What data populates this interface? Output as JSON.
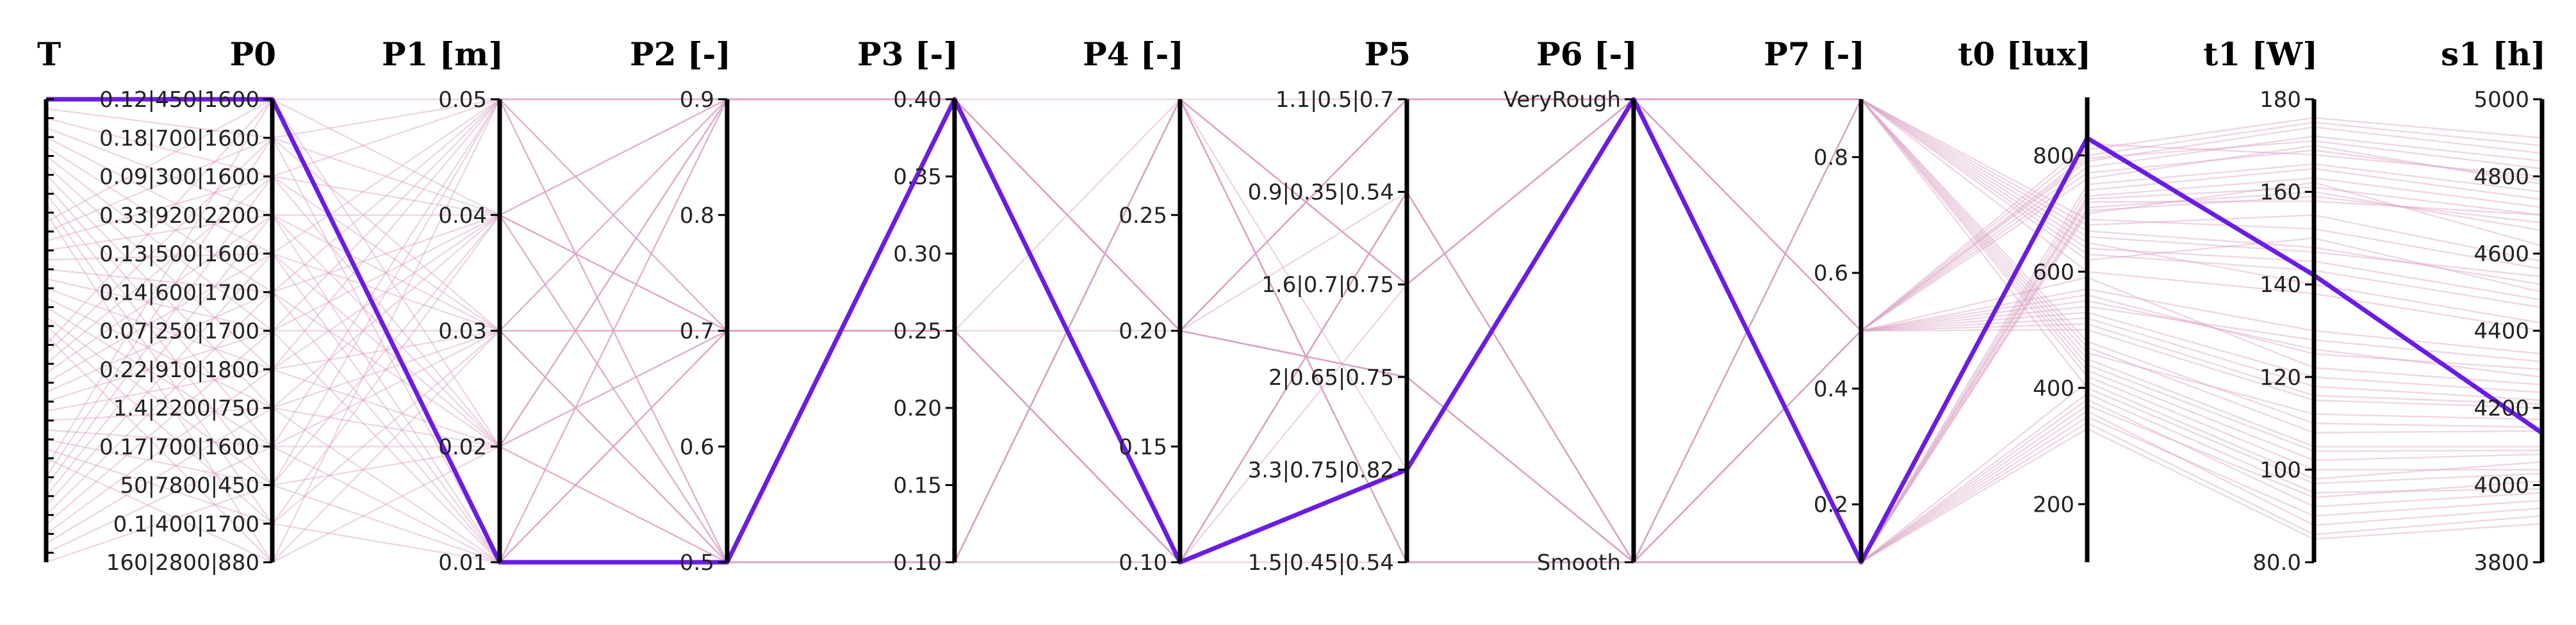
{
  "chart_data": {
    "type": "parallel-coordinates",
    "background_line_color": "#d9a3c6",
    "highlight_line_color": "#6a1ce6",
    "axes": [
      {
        "id": "T",
        "title": "T",
        "kind": "index",
        "count": 50,
        "ticks": []
      },
      {
        "id": "P0",
        "title": "P0",
        "kind": "categorical",
        "categories": [
          "0.12|450|1600",
          "0.18|700|1600",
          "0.09|300|1600",
          "0.33|920|2200",
          "0.13|500|1600",
          "0.14|600|1700",
          "0.07|250|1700",
          "0.22|910|1800",
          "1.4|2200|750",
          "0.17|700|1600",
          "50|7800|450",
          "0.1|400|1700",
          "160|2800|880"
        ]
      },
      {
        "id": "P1",
        "title": "P1 [m]",
        "kind": "numeric",
        "range": [
          0.01,
          0.05
        ],
        "ticks": [
          {
            "v": 0.05,
            "label": "0.05"
          },
          {
            "v": 0.04,
            "label": "0.04"
          },
          {
            "v": 0.03,
            "label": "0.03"
          },
          {
            "v": 0.02,
            "label": "0.02"
          },
          {
            "v": 0.01,
            "label": "0.01"
          }
        ]
      },
      {
        "id": "P2",
        "title": "P2 [-]",
        "kind": "numeric",
        "range": [
          0.5,
          0.9
        ],
        "ticks": [
          {
            "v": 0.9,
            "label": "0.9"
          },
          {
            "v": 0.8,
            "label": "0.8"
          },
          {
            "v": 0.7,
            "label": "0.7"
          },
          {
            "v": 0.6,
            "label": "0.6"
          },
          {
            "v": 0.5,
            "label": "0.5"
          }
        ]
      },
      {
        "id": "P3",
        "title": "P3 [-]",
        "kind": "numeric",
        "range": [
          0.1,
          0.4
        ],
        "ticks": [
          {
            "v": 0.4,
            "label": "0.40"
          },
          {
            "v": 0.35,
            "label": "0.35"
          },
          {
            "v": 0.3,
            "label": "0.30"
          },
          {
            "v": 0.25,
            "label": "0.25"
          },
          {
            "v": 0.2,
            "label": "0.20"
          },
          {
            "v": 0.15,
            "label": "0.15"
          },
          {
            "v": 0.1,
            "label": "0.10"
          }
        ]
      },
      {
        "id": "P4",
        "title": "P4 [-]",
        "kind": "numeric",
        "range": [
          0.1,
          0.3
        ],
        "ticks": [
          {
            "v": 0.25,
            "label": "0.25"
          },
          {
            "v": 0.2,
            "label": "0.20"
          },
          {
            "v": 0.15,
            "label": "0.15"
          },
          {
            "v": 0.1,
            "label": "0.10"
          }
        ]
      },
      {
        "id": "P5",
        "title": "P5",
        "kind": "categorical",
        "categories": [
          "1.1|0.5|0.7",
          "0.9|0.35|0.54",
          "1.6|0.7|0.75",
          "2|0.65|0.75",
          "3.3|0.75|0.82",
          "1.5|0.45|0.54"
        ]
      },
      {
        "id": "P6",
        "title": "P6 [-]",
        "kind": "categorical",
        "categories": [
          "VeryRough",
          "Smooth"
        ]
      },
      {
        "id": "P7",
        "title": "P7 [-]",
        "kind": "numeric",
        "range": [
          0.1,
          0.9
        ],
        "ticks": [
          {
            "v": 0.8,
            "label": "0.8"
          },
          {
            "v": 0.6,
            "label": "0.6"
          },
          {
            "v": 0.4,
            "label": "0.4"
          },
          {
            "v": 0.2,
            "label": "0.2"
          }
        ]
      },
      {
        "id": "t0",
        "title": "t0 [lux]",
        "kind": "numeric",
        "range": [
          100,
          900
        ],
        "ticks": [
          {
            "v": 800,
            "label": "800"
          },
          {
            "v": 600,
            "label": "600"
          },
          {
            "v": 400,
            "label": "400"
          },
          {
            "v": 200,
            "label": "200"
          }
        ]
      },
      {
        "id": "t1",
        "title": "t1 [W]",
        "kind": "numeric",
        "range": [
          80,
          180
        ],
        "ticks": [
          {
            "v": 180,
            "label": "180"
          },
          {
            "v": 160,
            "label": "160"
          },
          {
            "v": 140,
            "label": "140"
          },
          {
            "v": 120,
            "label": "120"
          },
          {
            "v": 100,
            "label": "100"
          },
          {
            "v": 80,
            "label": "80.0"
          }
        ]
      },
      {
        "id": "s1",
        "title": "s1 [h]",
        "kind": "numeric",
        "range": [
          3800,
          5000
        ],
        "ticks": [
          {
            "v": 5000,
            "label": "5000"
          },
          {
            "v": 4800,
            "label": "4800"
          },
          {
            "v": 4600,
            "label": "4600"
          },
          {
            "v": 4400,
            "label": "4400"
          },
          {
            "v": 4200,
            "label": "4200"
          },
          {
            "v": 4000,
            "label": "4000"
          },
          {
            "v": 3800,
            "label": "3800"
          }
        ]
      }
    ],
    "highlighted_record": {
      "T": 0,
      "P0": "0.12|450|1600",
      "P1": 0.01,
      "P2": 0.5,
      "P3": 0.4,
      "P4": 0.1,
      "P5": "3.3|0.75|0.82",
      "P6": "VeryRough",
      "P7": 0.1,
      "t0": 830,
      "t1": 142,
      "s1": 4135
    },
    "records": [
      {
        "T": 0,
        "P0": "0.12|450|1600",
        "P1": 0.05,
        "P2": 0.9,
        "P3": 0.4,
        "P4": 0.3,
        "P5": "1.1|0.5|0.7",
        "P6": "VeryRough",
        "P7": 0.9,
        "t0": 620,
        "t1": 150,
        "s1": 4500
      },
      {
        "T": 1,
        "P0": "0.18|700|1600",
        "P1": 0.04,
        "P2": 0.7,
        "P3": 0.25,
        "P4": 0.2,
        "P5": "0.9|0.35|0.54",
        "P6": "Smooth",
        "P7": 0.5,
        "t0": 540,
        "t1": 128,
        "s1": 4320
      },
      {
        "T": 2,
        "P0": "0.09|300|1600",
        "P1": 0.03,
        "P2": 0.5,
        "P3": 0.1,
        "P4": 0.1,
        "P5": "1.6|0.7|0.75",
        "P6": "VeryRough",
        "P7": 0.1,
        "t0": 700,
        "t1": 162,
        "s1": 4620
      },
      {
        "T": 3,
        "P0": "0.33|920|2200",
        "P1": 0.02,
        "P2": 0.9,
        "P3": 0.4,
        "P4": 0.2,
        "P5": "2|0.65|0.75",
        "P6": "Smooth",
        "P7": 0.9,
        "t0": 480,
        "t1": 110,
        "s1": 4150
      },
      {
        "T": 4,
        "P0": "0.13|500|1600",
        "P1": 0.01,
        "P2": 0.7,
        "P3": 0.25,
        "P4": 0.3,
        "P5": "3.3|0.75|0.82",
        "P6": "VeryRough",
        "P7": 0.5,
        "t0": 760,
        "t1": 170,
        "s1": 4780
      },
      {
        "T": 5,
        "P0": "0.14|600|1700",
        "P1": 0.05,
        "P2": 0.5,
        "P3": 0.1,
        "P4": 0.1,
        "P5": "1.5|0.45|0.54",
        "P6": "Smooth",
        "P7": 0.1,
        "t0": 410,
        "t1": 98,
        "s1": 4060
      },
      {
        "T": 6,
        "P0": "0.07|250|1700",
        "P1": 0.04,
        "P2": 0.9,
        "P3": 0.4,
        "P4": 0.2,
        "P5": "1.1|0.5|0.7",
        "P6": "VeryRough",
        "P7": 0.9,
        "t0": 650,
        "t1": 140,
        "s1": 4420
      },
      {
        "T": 7,
        "P0": "0.22|910|1800",
        "P1": 0.03,
        "P2": 0.7,
        "P3": 0.25,
        "P4": 0.1,
        "P5": "0.9|0.35|0.54",
        "P6": "Smooth",
        "P7": 0.5,
        "t0": 590,
        "t1": 122,
        "s1": 4260
      },
      {
        "T": 8,
        "P0": "1.4|2200|750",
        "P1": 0.02,
        "P2": 0.5,
        "P3": 0.1,
        "P4": 0.3,
        "P5": "1.6|0.7|0.75",
        "P6": "VeryRough",
        "P7": 0.1,
        "t0": 720,
        "t1": 158,
        "s1": 4700
      },
      {
        "T": 9,
        "P0": "0.17|700|1600",
        "P1": 0.01,
        "P2": 0.9,
        "P3": 0.4,
        "P4": 0.2,
        "P5": "2|0.65|0.75",
        "P6": "Smooth",
        "P7": 0.9,
        "t0": 450,
        "t1": 105,
        "s1": 4100
      },
      {
        "T": 10,
        "P0": "50|7800|450",
        "P1": 0.05,
        "P2": 0.7,
        "P3": 0.25,
        "P4": 0.1,
        "P5": "3.3|0.75|0.82",
        "P6": "VeryRough",
        "P7": 0.5,
        "t0": 800,
        "t1": 175,
        "s1": 4880
      },
      {
        "T": 11,
        "P0": "0.1|400|1700",
        "P1": 0.04,
        "P2": 0.5,
        "P3": 0.1,
        "P4": 0.3,
        "P5": "1.5|0.45|0.54",
        "P6": "Smooth",
        "P7": 0.1,
        "t0": 380,
        "t1": 92,
        "s1": 3980
      },
      {
        "T": 12,
        "P0": "160|2800|880",
        "P1": 0.03,
        "P2": 0.9,
        "P3": 0.4,
        "P4": 0.2,
        "P5": "1.1|0.5|0.7",
        "P6": "VeryRough",
        "P7": 0.9,
        "t0": 670,
        "t1": 148,
        "s1": 4520
      },
      {
        "T": 13,
        "P0": "0.12|450|1600",
        "P1": 0.02,
        "P2": 0.7,
        "P3": 0.25,
        "P4": 0.1,
        "P5": "0.9|0.35|0.54",
        "P6": "Smooth",
        "P7": 0.5,
        "t0": 520,
        "t1": 118,
        "s1": 4220
      },
      {
        "T": 14,
        "P0": "0.18|700|1600",
        "P1": 0.01,
        "P2": 0.5,
        "P3": 0.1,
        "P4": 0.3,
        "P5": "1.6|0.7|0.75",
        "P6": "VeryRough",
        "P7": 0.1,
        "t0": 740,
        "t1": 165,
        "s1": 4740
      },
      {
        "T": 15,
        "P0": "0.09|300|1600",
        "P1": 0.05,
        "P2": 0.9,
        "P3": 0.4,
        "P4": 0.2,
        "P5": "2|0.65|0.75",
        "P6": "Smooth",
        "P7": 0.9,
        "t0": 430,
        "t1": 102,
        "s1": 4080
      },
      {
        "T": 16,
        "P0": "0.33|920|2200",
        "P1": 0.04,
        "P2": 0.7,
        "P3": 0.25,
        "P4": 0.1,
        "P5": "3.3|0.75|0.82",
        "P6": "VeryRough",
        "P7": 0.5,
        "t0": 780,
        "t1": 172,
        "s1": 4840
      },
      {
        "T": 17,
        "P0": "0.13|500|1600",
        "P1": 0.03,
        "P2": 0.5,
        "P3": 0.1,
        "P4": 0.3,
        "P5": "1.5|0.45|0.54",
        "P6": "Smooth",
        "P7": 0.1,
        "t0": 360,
        "t1": 88,
        "s1": 3940
      },
      {
        "T": 18,
        "P0": "0.14|600|1700",
        "P1": 0.02,
        "P2": 0.9,
        "P3": 0.4,
        "P4": 0.2,
        "P5": "1.1|0.5|0.7",
        "P6": "VeryRough",
        "P7": 0.9,
        "t0": 690,
        "t1": 152,
        "s1": 4560
      },
      {
        "T": 19,
        "P0": "0.07|250|1700",
        "P1": 0.01,
        "P2": 0.7,
        "P3": 0.25,
        "P4": 0.1,
        "P5": "0.9|0.35|0.54",
        "P6": "Smooth",
        "P7": 0.5,
        "t0": 560,
        "t1": 125,
        "s1": 4300
      },
      {
        "T": 20,
        "P0": "0.22|910|1800",
        "P1": 0.05,
        "P2": 0.5,
        "P3": 0.1,
        "P4": 0.3,
        "P5": "1.6|0.7|0.75",
        "P6": "VeryRough",
        "P7": 0.1,
        "t0": 710,
        "t1": 160,
        "s1": 4660
      },
      {
        "T": 21,
        "P0": "1.4|2200|750",
        "P1": 0.04,
        "P2": 0.9,
        "P3": 0.4,
        "P4": 0.2,
        "P5": "2|0.65|0.75",
        "P6": "Smooth",
        "P7": 0.9,
        "t0": 470,
        "t1": 108,
        "s1": 4140
      },
      {
        "T": 22,
        "P0": "0.17|700|1600",
        "P1": 0.03,
        "P2": 0.7,
        "P3": 0.25,
        "P4": 0.1,
        "P5": "3.3|0.75|0.82",
        "P6": "VeryRough",
        "P7": 0.5,
        "t0": 820,
        "t1": 168,
        "s1": 4800
      },
      {
        "T": 23,
        "P0": "50|7800|450",
        "P1": 0.02,
        "P2": 0.5,
        "P3": 0.1,
        "P4": 0.3,
        "P5": "1.5|0.45|0.54",
        "P6": "Smooth",
        "P7": 0.1,
        "t0": 330,
        "t1": 85,
        "s1": 3900
      },
      {
        "T": 24,
        "P0": "0.1|400|1700",
        "P1": 0.01,
        "P2": 0.9,
        "P3": 0.4,
        "P4": 0.2,
        "P5": "1.1|0.5|0.7",
        "P6": "VeryRough",
        "P7": 0.9,
        "t0": 640,
        "t1": 145,
        "s1": 4480
      },
      {
        "T": 25,
        "P0": "160|2800|880",
        "P1": 0.05,
        "P2": 0.7,
        "P3": 0.25,
        "P4": 0.1,
        "P5": "0.9|0.35|0.54",
        "P6": "Smooth",
        "P7": 0.5,
        "t0": 500,
        "t1": 115,
        "s1": 4200
      },
      {
        "T": 26,
        "P0": "0.12|450|1600",
        "P1": 0.04,
        "P2": 0.5,
        "P3": 0.1,
        "P4": 0.3,
        "P5": "1.6|0.7|0.75",
        "P6": "VeryRough",
        "P7": 0.1,
        "t0": 730,
        "t1": 163,
        "s1": 4720
      },
      {
        "T": 27,
        "P0": "0.18|700|1600",
        "P1": 0.03,
        "P2": 0.9,
        "P3": 0.4,
        "P4": 0.2,
        "P5": "2|0.65|0.75",
        "P6": "Smooth",
        "P7": 0.9,
        "t0": 420,
        "t1": 100,
        "s1": 4040
      },
      {
        "T": 28,
        "P0": "0.09|300|1600",
        "P1": 0.02,
        "P2": 0.7,
        "P3": 0.25,
        "P4": 0.1,
        "P5": "3.3|0.75|0.82",
        "P6": "VeryRough",
        "P7": 0.5,
        "t0": 790,
        "t1": 174,
        "s1": 4860
      },
      {
        "T": 29,
        "P0": "0.33|920|2200",
        "P1": 0.01,
        "P2": 0.5,
        "P3": 0.1,
        "P4": 0.3,
        "P5": "1.5|0.45|0.54",
        "P6": "Smooth",
        "P7": 0.1,
        "t0": 350,
        "t1": 90,
        "s1": 3960
      },
      {
        "T": 30,
        "P0": "0.13|500|1600",
        "P1": 0.05,
        "P2": 0.9,
        "P3": 0.4,
        "P4": 0.2,
        "P5": "1.1|0.5|0.7",
        "P6": "VeryRough",
        "P7": 0.9,
        "t0": 660,
        "t1": 147,
        "s1": 4540
      },
      {
        "T": 31,
        "P0": "0.14|600|1700",
        "P1": 0.04,
        "P2": 0.7,
        "P3": 0.25,
        "P4": 0.1,
        "P5": "0.9|0.35|0.54",
        "P6": "Smooth",
        "P7": 0.5,
        "t0": 530,
        "t1": 120,
        "s1": 4240
      },
      {
        "T": 32,
        "P0": "0.07|250|1700",
        "P1": 0.03,
        "P2": 0.5,
        "P3": 0.1,
        "P4": 0.3,
        "P5": "1.6|0.7|0.75",
        "P6": "VeryRough",
        "P7": 0.1,
        "t0": 750,
        "t1": 166,
        "s1": 4760
      },
      {
        "T": 33,
        "P0": "0.22|910|1800",
        "P1": 0.02,
        "P2": 0.9,
        "P3": 0.4,
        "P4": 0.2,
        "P5": "2|0.65|0.75",
        "P6": "Smooth",
        "P7": 0.9,
        "t0": 440,
        "t1": 104,
        "s1": 4090
      },
      {
        "T": 34,
        "P0": "1.4|2200|750",
        "P1": 0.01,
        "P2": 0.7,
        "P3": 0.25,
        "P4": 0.1,
        "P5": "3.3|0.75|0.82",
        "P6": "VeryRough",
        "P7": 0.5,
        "t0": 810,
        "t1": 176,
        "s1": 4900
      },
      {
        "T": 35,
        "P0": "0.17|700|1600",
        "P1": 0.05,
        "P2": 0.5,
        "P3": 0.1,
        "P4": 0.3,
        "P5": "1.5|0.45|0.54",
        "P6": "Smooth",
        "P7": 0.1,
        "t0": 370,
        "t1": 94,
        "s1": 4010
      },
      {
        "T": 36,
        "P0": "50|7800|450",
        "P1": 0.04,
        "P2": 0.9,
        "P3": 0.4,
        "P4": 0.2,
        "P5": "1.1|0.5|0.7",
        "P6": "VeryRough",
        "P7": 0.9,
        "t0": 680,
        "t1": 155,
        "s1": 4580
      },
      {
        "T": 37,
        "P0": "0.1|400|1700",
        "P1": 0.03,
        "P2": 0.7,
        "P3": 0.25,
        "P4": 0.1,
        "P5": "0.9|0.35|0.54",
        "P6": "Smooth",
        "P7": 0.5,
        "t0": 570,
        "t1": 130,
        "s1": 4340
      },
      {
        "T": 38,
        "P0": "160|2800|880",
        "P1": 0.02,
        "P2": 0.5,
        "P3": 0.1,
        "P4": 0.3,
        "P5": "1.6|0.7|0.75",
        "P6": "VeryRough",
        "P7": 0.1,
        "t0": 705,
        "t1": 159,
        "s1": 4680
      },
      {
        "T": 39,
        "P0": "0.12|450|1600",
        "P1": 0.01,
        "P2": 0.9,
        "P3": 0.4,
        "P4": 0.2,
        "P5": "2|0.65|0.75",
        "P6": "Smooth",
        "P7": 0.9,
        "t0": 460,
        "t1": 112,
        "s1": 4170
      },
      {
        "T": 40,
        "P0": "0.18|700|1600",
        "P1": 0.05,
        "P2": 0.7,
        "P3": 0.25,
        "P4": 0.1,
        "P5": "3.3|0.75|0.82",
        "P6": "VeryRough",
        "P7": 0.5,
        "t0": 795,
        "t1": 171,
        "s1": 4820
      },
      {
        "T": 41,
        "P0": "0.09|300|1600",
        "P1": 0.04,
        "P2": 0.5,
        "P3": 0.1,
        "P4": 0.3,
        "P5": "1.5|0.45|0.54",
        "P6": "Smooth",
        "P7": 0.1,
        "t0": 340,
        "t1": 86,
        "s1": 3920
      },
      {
        "T": 42,
        "P0": "0.33|920|2200",
        "P1": 0.03,
        "P2": 0.9,
        "P3": 0.4,
        "P4": 0.2,
        "P5": "1.1|0.5|0.7",
        "P6": "VeryRough",
        "P7": 0.9,
        "t0": 630,
        "t1": 143,
        "s1": 4460
      },
      {
        "T": 43,
        "P0": "0.13|500|1600",
        "P1": 0.02,
        "P2": 0.7,
        "P3": 0.25,
        "P4": 0.1,
        "P5": "0.9|0.35|0.54",
        "P6": "Smooth",
        "P7": 0.5,
        "t0": 510,
        "t1": 116,
        "s1": 4210
      },
      {
        "T": 44,
        "P0": "0.14|600|1700",
        "P1": 0.01,
        "P2": 0.5,
        "P3": 0.1,
        "P4": 0.3,
        "P5": "1.6|0.7|0.75",
        "P6": "VeryRough",
        "P7": 0.1,
        "t0": 725,
        "t1": 161,
        "s1": 4700
      },
      {
        "T": 45,
        "P0": "0.07|250|1700",
        "P1": 0.05,
        "P2": 0.9,
        "P3": 0.4,
        "P4": 0.2,
        "P5": "2|0.65|0.75",
        "P6": "Smooth",
        "P7": 0.9,
        "t0": 400,
        "t1": 97,
        "s1": 4030
      },
      {
        "T": 46,
        "P0": "0.22|910|1800",
        "P1": 0.04,
        "P2": 0.7,
        "P3": 0.25,
        "P4": 0.1,
        "P5": "3.3|0.75|0.82",
        "P6": "VeryRough",
        "P7": 0.5,
        "t0": 770,
        "t1": 169,
        "s1": 4790
      },
      {
        "T": 47,
        "P0": "1.4|2200|750",
        "P1": 0.03,
        "P2": 0.5,
        "P3": 0.1,
        "P4": 0.3,
        "P5": "1.5|0.45|0.54",
        "P6": "Smooth",
        "P7": 0.1,
        "t0": 390,
        "t1": 95,
        "s1": 3990
      },
      {
        "T": 48,
        "P0": "0.17|700|1600",
        "P1": 0.02,
        "P2": 0.9,
        "P3": 0.4,
        "P4": 0.2,
        "P5": "1.1|0.5|0.7",
        "P6": "VeryRough",
        "P7": 0.9,
        "t0": 600,
        "t1": 138,
        "s1": 4400
      },
      {
        "T": 49,
        "P0": "50|7800|450",
        "P1": 0.01,
        "P2": 0.7,
        "P3": 0.25,
        "P4": 0.1,
        "P5": "0.9|0.35|0.54",
        "P6": "Smooth",
        "P7": 0.5,
        "t0": 550,
        "t1": 126,
        "s1": 4280
      }
    ]
  }
}
